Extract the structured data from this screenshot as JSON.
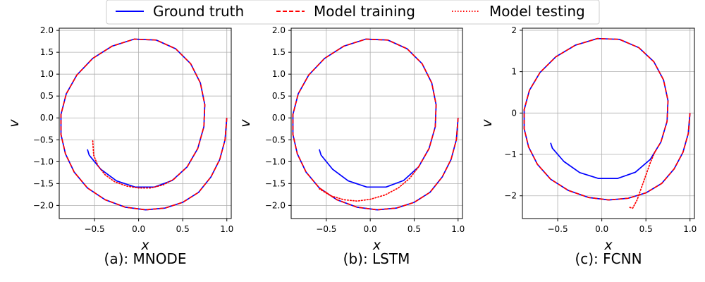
{
  "legend": {
    "placement": "top-center",
    "entries": [
      {
        "label": "Ground truth",
        "color": "#0000ff",
        "style": "solid"
      },
      {
        "label": "Model training",
        "color": "#ff0000",
        "style": "dashed"
      },
      {
        "label": "Model testing",
        "color": "#ff0000",
        "style": "dotted"
      }
    ]
  },
  "chart_data": [
    {
      "type": "line",
      "caption": "(a): MNODE",
      "xlabel": "x",
      "ylabel": "v",
      "xlim": [
        -0.9,
        1.05
      ],
      "ylim": [
        -2.3,
        2.05
      ],
      "xticks": [
        -0.5,
        0.0,
        0.5,
        1.0
      ],
      "xtick_labels": [
        "−0.5",
        "0.0",
        "0.5",
        "1.0"
      ],
      "yticks": [
        -2.0,
        -1.5,
        -1.0,
        -0.5,
        0.0,
        0.5,
        1.0,
        1.5,
        2.0
      ],
      "ytick_labels": [
        "−2.0",
        "−1.5",
        "−1.0",
        "−0.5",
        "0.0",
        "0.5",
        "1.0",
        "1.5",
        "2.0"
      ],
      "grid": true,
      "series": [
        {
          "name": "Ground truth",
          "color": "#0000ff",
          "style": "solid",
          "points": [
            [
              1.0,
              0.0
            ],
            [
              0.98,
              -0.5
            ],
            [
              0.92,
              -0.95
            ],
            [
              0.82,
              -1.35
            ],
            [
              0.68,
              -1.7
            ],
            [
              0.5,
              -1.93
            ],
            [
              0.3,
              -2.06
            ],
            [
              0.08,
              -2.1
            ],
            [
              -0.15,
              -2.04
            ],
            [
              -0.38,
              -1.87
            ],
            [
              -0.58,
              -1.6
            ],
            [
              -0.73,
              -1.24
            ],
            [
              -0.83,
              -0.82
            ],
            [
              -0.88,
              -0.38
            ],
            [
              -0.88,
              0.08
            ],
            [
              -0.82,
              0.55
            ],
            [
              -0.7,
              0.98
            ],
            [
              -0.52,
              1.36
            ],
            [
              -0.3,
              1.64
            ],
            [
              -0.05,
              1.8
            ],
            [
              0.2,
              1.78
            ],
            [
              0.42,
              1.58
            ],
            [
              0.59,
              1.24
            ],
            [
              0.7,
              0.8
            ],
            [
              0.75,
              0.3
            ],
            [
              0.74,
              -0.2
            ],
            [
              0.67,
              -0.7
            ],
            [
              0.55,
              -1.12
            ],
            [
              0.38,
              -1.43
            ],
            [
              0.18,
              -1.58
            ],
            [
              -0.04,
              -1.58
            ],
            [
              -0.25,
              -1.44
            ],
            [
              -0.43,
              -1.17
            ],
            [
              -0.56,
              -0.85
            ],
            [
              -0.58,
              -0.72
            ]
          ]
        },
        {
          "name": "Model training",
          "color": "#ff0000",
          "style": "dashed",
          "points": [
            [
              1.0,
              0.0
            ],
            [
              0.98,
              -0.5
            ],
            [
              0.92,
              -0.95
            ],
            [
              0.82,
              -1.35
            ],
            [
              0.68,
              -1.7
            ],
            [
              0.5,
              -1.93
            ],
            [
              0.3,
              -2.06
            ],
            [
              0.08,
              -2.1
            ],
            [
              -0.15,
              -2.04
            ],
            [
              -0.38,
              -1.87
            ],
            [
              -0.58,
              -1.6
            ],
            [
              -0.73,
              -1.24
            ],
            [
              -0.83,
              -0.82
            ],
            [
              -0.88,
              -0.38
            ],
            [
              -0.88,
              0.08
            ],
            [
              -0.82,
              0.55
            ],
            [
              -0.7,
              0.98
            ],
            [
              -0.52,
              1.36
            ],
            [
              -0.3,
              1.64
            ],
            [
              -0.05,
              1.8
            ],
            [
              0.2,
              1.78
            ],
            [
              0.42,
              1.58
            ],
            [
              0.59,
              1.24
            ],
            [
              0.7,
              0.8
            ],
            [
              0.75,
              0.3
            ],
            [
              0.74,
              -0.2
            ],
            [
              0.67,
              -0.7
            ],
            [
              0.55,
              -1.12
            ],
            [
              0.4,
              -1.4
            ]
          ]
        },
        {
          "name": "Model testing",
          "color": "#ff0000",
          "style": "dotted",
          "points": [
            [
              0.4,
              -1.4
            ],
            [
              0.28,
              -1.53
            ],
            [
              0.14,
              -1.6
            ],
            [
              0.0,
              -1.6
            ],
            [
              -0.13,
              -1.56
            ],
            [
              -0.27,
              -1.46
            ],
            [
              -0.38,
              -1.3
            ],
            [
              -0.46,
              -1.1
            ],
            [
              -0.51,
              -0.85
            ],
            [
              -0.52,
              -0.5
            ]
          ]
        }
      ]
    },
    {
      "type": "line",
      "caption": "(b): LSTM",
      "xlabel": "x",
      "ylabel": "v",
      "xlim": [
        -0.9,
        1.05
      ],
      "ylim": [
        -2.3,
        2.05
      ],
      "xticks": [
        -0.5,
        0.0,
        0.5,
        1.0
      ],
      "xtick_labels": [
        "−0.5",
        "0.0",
        "0.5",
        "1.0"
      ],
      "yticks": [
        -2.0,
        -1.5,
        -1.0,
        -0.5,
        0.0,
        0.5,
        1.0,
        1.5,
        2.0
      ],
      "ytick_labels": [
        "−2.0",
        "−1.5",
        "−1.0",
        "−0.5",
        "0.0",
        "0.5",
        "1.0",
        "1.5",
        "2.0"
      ],
      "grid": true,
      "series": [
        {
          "name": "Ground truth",
          "color": "#0000ff",
          "style": "solid",
          "points": [
            [
              1.0,
              0.0
            ],
            [
              0.98,
              -0.5
            ],
            [
              0.92,
              -0.95
            ],
            [
              0.82,
              -1.35
            ],
            [
              0.68,
              -1.7
            ],
            [
              0.5,
              -1.93
            ],
            [
              0.3,
              -2.06
            ],
            [
              0.08,
              -2.1
            ],
            [
              -0.15,
              -2.04
            ],
            [
              -0.38,
              -1.87
            ],
            [
              -0.58,
              -1.6
            ],
            [
              -0.73,
              -1.24
            ],
            [
              -0.83,
              -0.82
            ],
            [
              -0.88,
              -0.38
            ],
            [
              -0.88,
              0.08
            ],
            [
              -0.82,
              0.55
            ],
            [
              -0.7,
              0.98
            ],
            [
              -0.52,
              1.36
            ],
            [
              -0.3,
              1.64
            ],
            [
              -0.05,
              1.8
            ],
            [
              0.2,
              1.78
            ],
            [
              0.42,
              1.58
            ],
            [
              0.59,
              1.24
            ],
            [
              0.7,
              0.8
            ],
            [
              0.75,
              0.3
            ],
            [
              0.74,
              -0.2
            ],
            [
              0.67,
              -0.7
            ],
            [
              0.55,
              -1.12
            ],
            [
              0.38,
              -1.43
            ],
            [
              0.18,
              -1.58
            ],
            [
              -0.04,
              -1.58
            ],
            [
              -0.25,
              -1.44
            ],
            [
              -0.43,
              -1.17
            ],
            [
              -0.56,
              -0.85
            ],
            [
              -0.58,
              -0.72
            ]
          ]
        },
        {
          "name": "Model training",
          "color": "#ff0000",
          "style": "dashed",
          "points": [
            [
              1.0,
              0.0
            ],
            [
              0.98,
              -0.5
            ],
            [
              0.92,
              -0.95
            ],
            [
              0.82,
              -1.35
            ],
            [
              0.68,
              -1.7
            ],
            [
              0.5,
              -1.93
            ],
            [
              0.3,
              -2.06
            ],
            [
              0.08,
              -2.1
            ],
            [
              -0.15,
              -2.04
            ],
            [
              -0.38,
              -1.87
            ],
            [
              -0.58,
              -1.6
            ],
            [
              -0.73,
              -1.24
            ],
            [
              -0.83,
              -0.82
            ],
            [
              -0.88,
              -0.38
            ],
            [
              -0.88,
              0.08
            ],
            [
              -0.82,
              0.55
            ],
            [
              -0.7,
              0.98
            ],
            [
              -0.52,
              1.36
            ],
            [
              -0.3,
              1.64
            ],
            [
              -0.05,
              1.8
            ],
            [
              0.2,
              1.78
            ],
            [
              0.42,
              1.58
            ],
            [
              0.59,
              1.24
            ],
            [
              0.7,
              0.8
            ],
            [
              0.75,
              0.3
            ],
            [
              0.74,
              -0.2
            ],
            [
              0.67,
              -0.7
            ],
            [
              0.55,
              -1.12
            ]
          ]
        },
        {
          "name": "Model testing",
          "color": "#ff0000",
          "style": "dotted",
          "points": [
            [
              0.55,
              -1.12
            ],
            [
              0.45,
              -1.38
            ],
            [
              0.32,
              -1.6
            ],
            [
              0.17,
              -1.76
            ],
            [
              0.0,
              -1.86
            ],
            [
              -0.15,
              -1.9
            ],
            [
              -0.3,
              -1.87
            ],
            [
              -0.45,
              -1.78
            ],
            [
              -0.58,
              -1.62
            ]
          ]
        }
      ]
    },
    {
      "type": "line",
      "caption": "(c): FCNN",
      "xlabel": "x",
      "ylabel": "v",
      "xlim": [
        -0.9,
        1.05
      ],
      "ylim": [
        -2.55,
        2.05
      ],
      "xticks": [
        -0.5,
        0.0,
        0.5,
        1.0
      ],
      "xtick_labels": [
        "−0.5",
        "0.0",
        "0.5",
        "1.0"
      ],
      "yticks": [
        -2,
        -1,
        0,
        1,
        2
      ],
      "ytick_labels": [
        "−2",
        "−1",
        "0",
        "1",
        "2"
      ],
      "grid": true,
      "series": [
        {
          "name": "Ground truth",
          "color": "#0000ff",
          "style": "solid",
          "points": [
            [
              1.0,
              0.0
            ],
            [
              0.98,
              -0.5
            ],
            [
              0.92,
              -0.95
            ],
            [
              0.82,
              -1.35
            ],
            [
              0.68,
              -1.7
            ],
            [
              0.5,
              -1.93
            ],
            [
              0.3,
              -2.06
            ],
            [
              0.08,
              -2.1
            ],
            [
              -0.15,
              -2.04
            ],
            [
              -0.38,
              -1.87
            ],
            [
              -0.58,
              -1.6
            ],
            [
              -0.73,
              -1.24
            ],
            [
              -0.83,
              -0.82
            ],
            [
              -0.88,
              -0.38
            ],
            [
              -0.88,
              0.08
            ],
            [
              -0.82,
              0.55
            ],
            [
              -0.7,
              0.98
            ],
            [
              -0.52,
              1.36
            ],
            [
              -0.3,
              1.64
            ],
            [
              -0.05,
              1.8
            ],
            [
              0.2,
              1.78
            ],
            [
              0.42,
              1.58
            ],
            [
              0.59,
              1.24
            ],
            [
              0.7,
              0.8
            ],
            [
              0.75,
              0.3
            ],
            [
              0.74,
              -0.2
            ],
            [
              0.67,
              -0.7
            ],
            [
              0.55,
              -1.12
            ],
            [
              0.38,
              -1.43
            ],
            [
              0.18,
              -1.58
            ],
            [
              -0.04,
              -1.58
            ],
            [
              -0.25,
              -1.44
            ],
            [
              -0.43,
              -1.17
            ],
            [
              -0.56,
              -0.85
            ],
            [
              -0.58,
              -0.72
            ]
          ]
        },
        {
          "name": "Model training",
          "color": "#ff0000",
          "style": "dashed",
          "points": [
            [
              1.0,
              0.0
            ],
            [
              0.98,
              -0.5
            ],
            [
              0.92,
              -0.95
            ],
            [
              0.82,
              -1.35
            ],
            [
              0.68,
              -1.7
            ],
            [
              0.5,
              -1.93
            ],
            [
              0.3,
              -2.06
            ],
            [
              0.08,
              -2.1
            ],
            [
              -0.15,
              -2.04
            ],
            [
              -0.38,
              -1.87
            ],
            [
              -0.58,
              -1.6
            ],
            [
              -0.73,
              -1.24
            ],
            [
              -0.83,
              -0.82
            ],
            [
              -0.88,
              -0.38
            ],
            [
              -0.88,
              0.08
            ],
            [
              -0.82,
              0.55
            ],
            [
              -0.7,
              0.98
            ],
            [
              -0.52,
              1.36
            ],
            [
              -0.3,
              1.64
            ],
            [
              -0.05,
              1.8
            ],
            [
              0.2,
              1.78
            ],
            [
              0.42,
              1.58
            ],
            [
              0.59,
              1.24
            ],
            [
              0.7,
              0.8
            ],
            [
              0.75,
              0.3
            ],
            [
              0.74,
              -0.2
            ],
            [
              0.67,
              -0.7
            ],
            [
              0.6,
              -0.95
            ]
          ]
        },
        {
          "name": "Model testing",
          "color": "#ff0000",
          "style": "dotted",
          "points": [
            [
              0.6,
              -0.95
            ],
            [
              0.55,
              -1.2
            ],
            [
              0.5,
              -1.5
            ],
            [
              0.45,
              -1.8
            ],
            [
              0.4,
              -2.1
            ],
            [
              0.35,
              -2.3
            ],
            [
              0.3,
              -2.27
            ]
          ]
        }
      ]
    }
  ]
}
